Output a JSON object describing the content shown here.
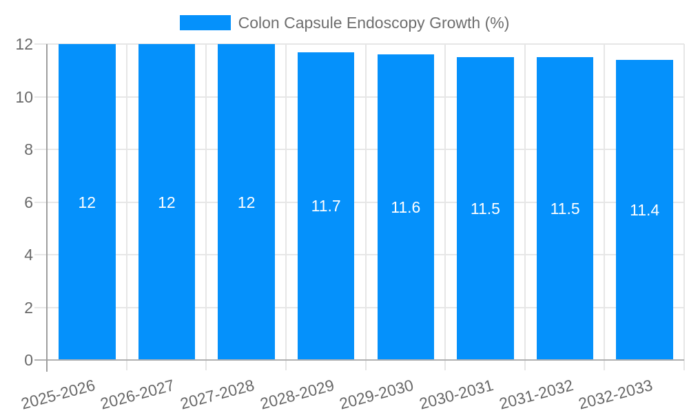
{
  "chart_data": {
    "type": "bar",
    "title": "Colon Capsule Endoscopy Growth (%)",
    "legend": {
      "position": "top",
      "entries": [
        {
          "label": "Colon Capsule Endoscopy Growth (%)",
          "swatch_color": "#0591fb"
        }
      ]
    },
    "categories": [
      "2025-2026",
      "2026-2027",
      "2027-2028",
      "2028-2029",
      "2029-2030",
      "2030-2031",
      "2031-2032",
      "2032-2033"
    ],
    "series": [
      {
        "name": "Colon Capsule Endoscopy Growth (%)",
        "values": [
          12,
          12,
          12,
          11.7,
          11.6,
          11.5,
          11.5,
          11.4
        ],
        "bar_labels": [
          "12",
          "12",
          "12",
          "11.7",
          "11.6",
          "11.5",
          "11.5",
          "11.4"
        ]
      }
    ],
    "xlabel": "",
    "ylabel": "",
    "ylim": [
      0,
      12
    ],
    "yticks": [
      0,
      2,
      4,
      6,
      8,
      10,
      12
    ],
    "grid": true,
    "x_tick_rotation_deg": -15,
    "colors": {
      "bar": "#0591fb",
      "grid": "#e6e6e6",
      "baseline": "#b0b0b0",
      "axis_line": "#9e9e9e",
      "tick_text": "#696969",
      "legend_text": "#6e6e6e",
      "value_label_text": "#ffffff",
      "background": "#ffffff"
    }
  }
}
